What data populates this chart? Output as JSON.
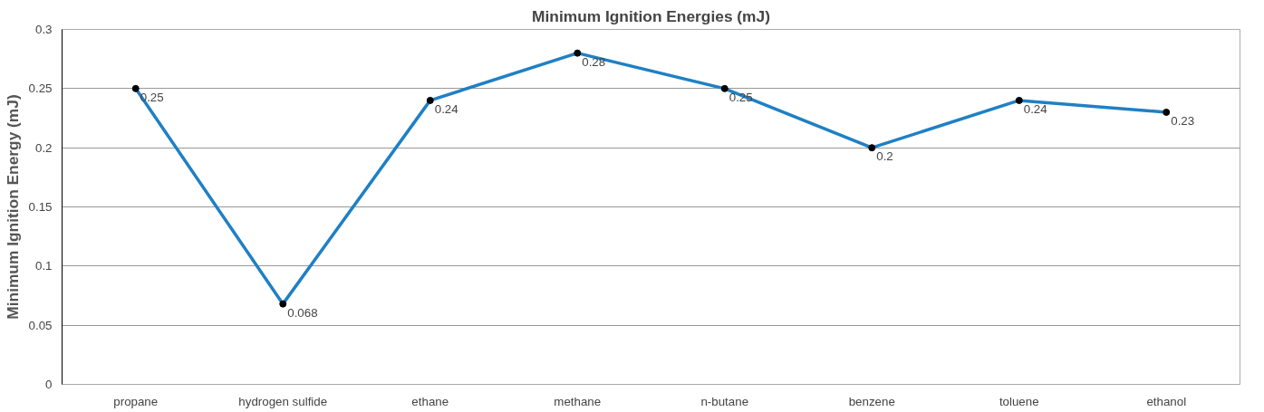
{
  "chart_data": {
    "type": "line",
    "title": "Minimum Ignition Energies (mJ)",
    "ylabel": "Minimum Ignition Energy (mJ)",
    "categories": [
      "propane",
      "hydrogen sulfide",
      "ethane",
      "methane",
      "n-butane",
      "benzene",
      "toluene",
      "ethanol"
    ],
    "series": [
      {
        "color": "#1f80c4",
        "values": [
          0.25,
          0.068,
          0.24,
          0.28,
          0.25,
          0.2,
          0.24,
          0.23
        ]
      }
    ],
    "ylim": [
      0,
      0.3
    ],
    "yticks": [
      0,
      0.05,
      0.1,
      0.15,
      0.2,
      0.25,
      0.3
    ],
    "grid": "y",
    "marker": "circle",
    "line_style": "solid",
    "data_labels": true
  }
}
